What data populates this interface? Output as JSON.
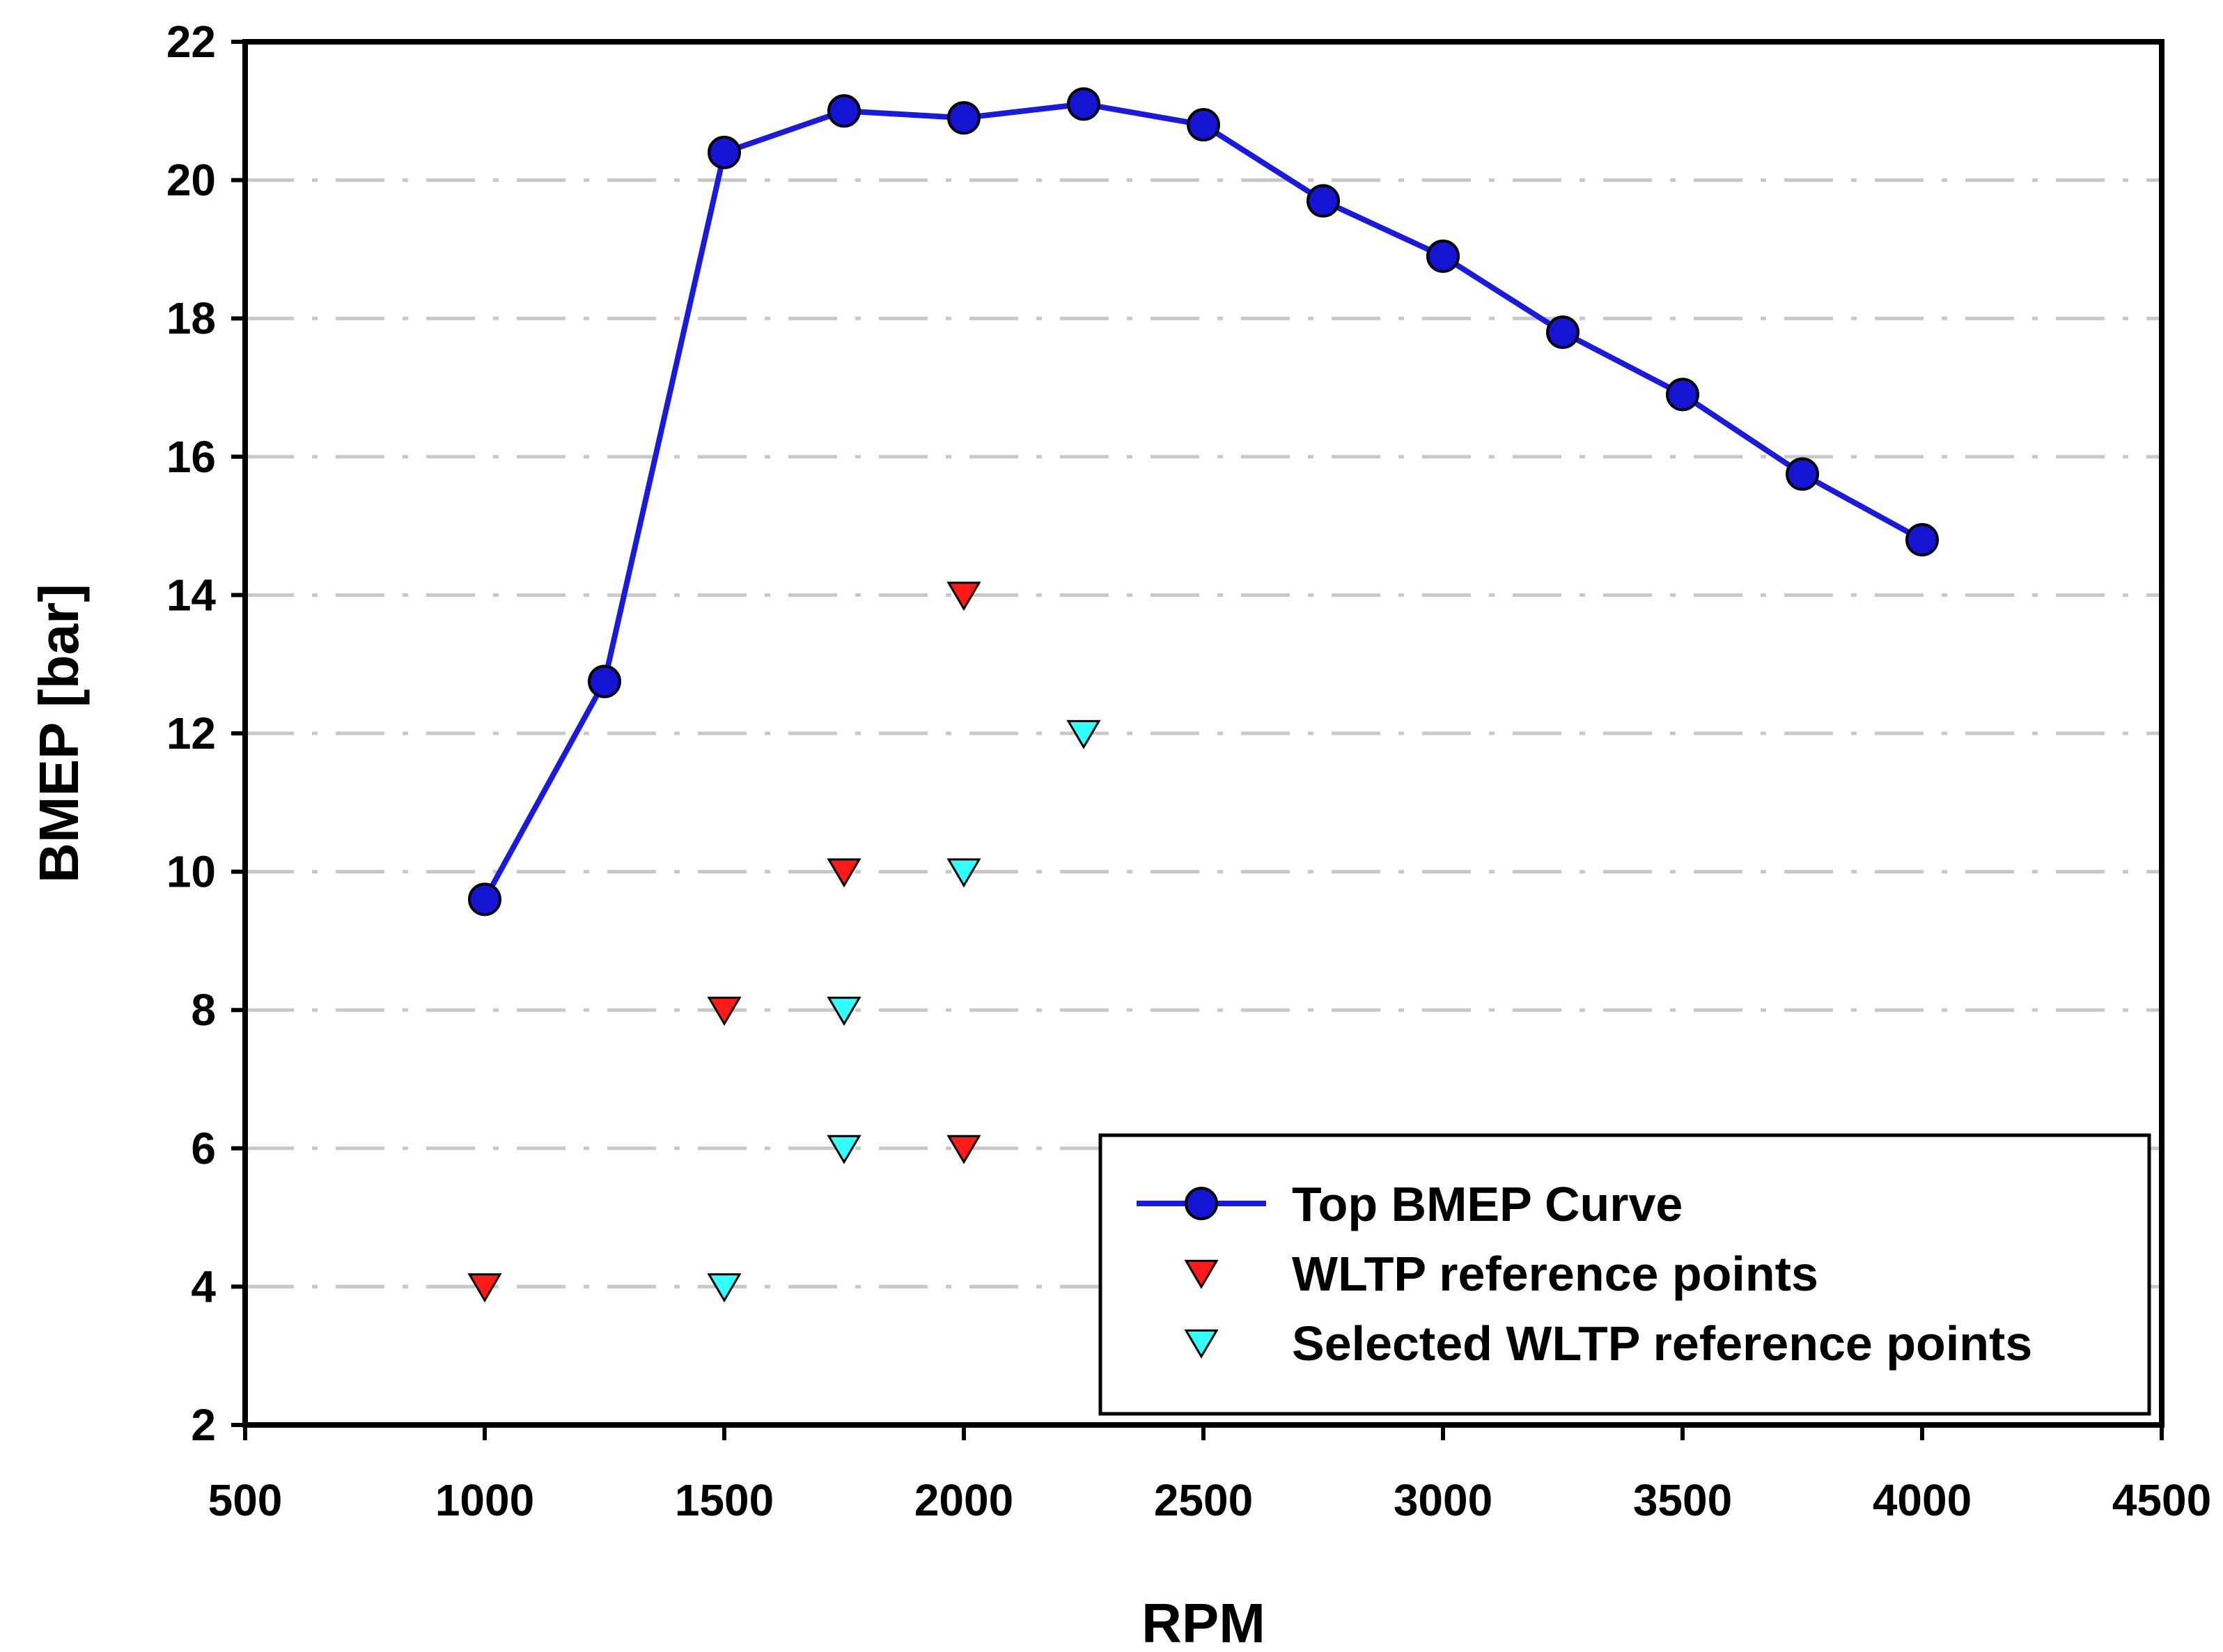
{
  "chart_data": {
    "type": "line",
    "xlabel": "RPM",
    "ylabel": "BMEP [bar]",
    "xlim": [
      500,
      4500
    ],
    "ylim": [
      2,
      22
    ],
    "x_ticks": [
      500,
      1000,
      1500,
      2000,
      2500,
      3000,
      3500,
      4000,
      4500
    ],
    "y_ticks": [
      2,
      4,
      6,
      8,
      10,
      12,
      14,
      16,
      18,
      20,
      22
    ],
    "grid": "horizontal dashed",
    "legend_position": "bottom-right",
    "colors": {
      "curve": "#1a1adc",
      "curve_marker": "#1414d2",
      "wltp": "#ff1a1a",
      "selected": "#33ffff"
    },
    "series": [
      {
        "name": "Top BMEP Curve",
        "kind": "line-marker",
        "x": [
          1000,
          1250,
          1500,
          1750,
          2000,
          2250,
          2500,
          2750,
          3000,
          3250,
          3500,
          3750,
          4000
        ],
        "y": [
          9.6,
          12.75,
          20.4,
          21.0,
          20.9,
          21.1,
          20.8,
          19.7,
          18.9,
          17.8,
          16.9,
          15.75,
          14.8
        ]
      },
      {
        "name": "WLTP reference points",
        "kind": "triangle-down",
        "x": [
          1000,
          1500,
          1750,
          2000,
          2000
        ],
        "y": [
          4,
          8,
          10,
          14,
          6
        ]
      },
      {
        "name": "Selected WLTP reference points",
        "kind": "triangle-down",
        "x": [
          1500,
          1750,
          1750,
          2000,
          2250
        ],
        "y": [
          4,
          6,
          8,
          10,
          12
        ]
      }
    ]
  }
}
